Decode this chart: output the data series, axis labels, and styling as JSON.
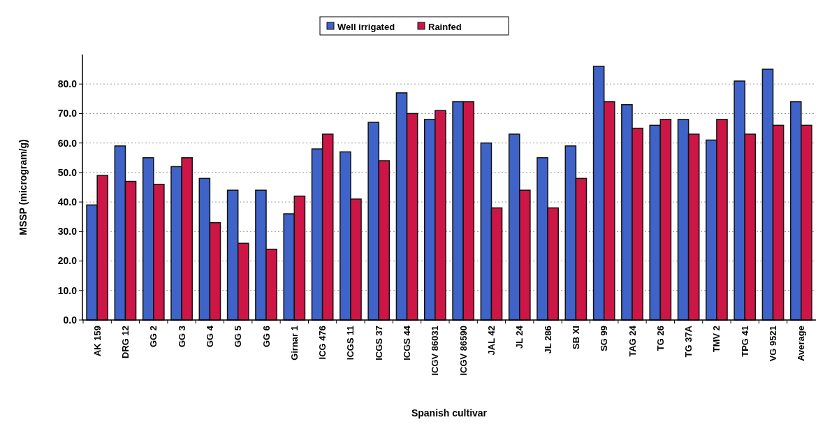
{
  "chart_data": {
    "type": "bar",
    "xlabel": "Spanish cultivar",
    "ylabel": "MSSP (microgram/g)",
    "categories": [
      "AK 159",
      "DRG 12",
      "GG 2",
      "GG 3",
      "GG 4",
      "GG 5",
      "GG 6",
      "Girnar 1",
      "ICG 476",
      "ICGS 11",
      "ICGS 37",
      "ICGS 44",
      "ICGV 86031",
      "ICGV 86590",
      "JAL 42",
      "JL 24",
      "JL 286",
      "SB XI",
      "SG 99",
      "TAG 24",
      "TG 26",
      "TG 37A",
      "TMV 2",
      "TPG 41",
      "VG 9521",
      "Average"
    ],
    "series": [
      {
        "name": "Well irrigated",
        "color": "#3f63c8",
        "values": [
          39,
          59,
          55,
          52,
          48,
          44,
          44,
          36,
          58,
          57,
          67,
          77,
          68,
          74,
          60,
          63,
          55,
          59,
          86,
          73,
          66,
          68,
          61,
          81,
          85,
          74
        ]
      },
      {
        "name": "Rainfed",
        "color": "#cc1646",
        "values": [
          49,
          47,
          46,
          55,
          33,
          26,
          24,
          42,
          63,
          41,
          54,
          70,
          71,
          74,
          38,
          44,
          38,
          48,
          74,
          65,
          68,
          63,
          68,
          63,
          66,
          66
        ]
      }
    ],
    "ylim": [
      0,
      90
    ],
    "yticks": [
      {
        "value": 0,
        "label": "0.0"
      },
      {
        "value": 10,
        "label": "10.0"
      },
      {
        "value": 20,
        "label": "20.0"
      },
      {
        "value": 30,
        "label": "30.0"
      },
      {
        "value": 40,
        "label": "40.0"
      },
      {
        "value": 50,
        "label": "50.0"
      },
      {
        "value": 60,
        "label": "60.0"
      },
      {
        "value": 70,
        "label": "70.0"
      },
      {
        "value": 80,
        "label": "80.0"
      }
    ],
    "grid": "y",
    "legend": "top"
  }
}
